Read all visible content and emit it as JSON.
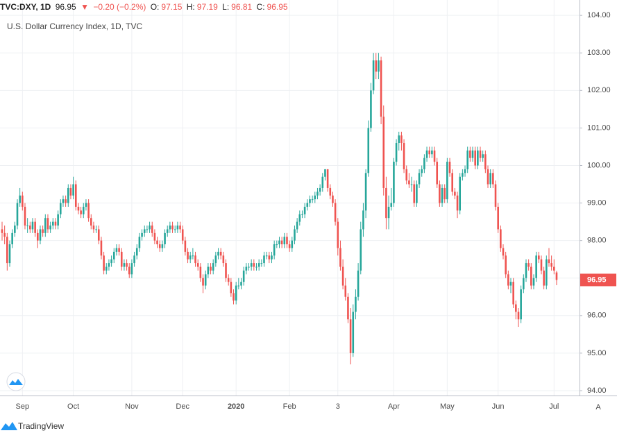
{
  "header": {
    "symbol": "TVC:DXY, 1D",
    "last": "96.95",
    "arrow": "▼",
    "change": "−0.20 (−0.2%)",
    "ohlc": [
      [
        "O:",
        "97.15"
      ],
      [
        "H:",
        "97.19"
      ],
      [
        "L:",
        "96.81"
      ],
      [
        "C:",
        "96.95"
      ]
    ]
  },
  "footer": {
    "logo": "TradingView",
    "scale_button": "A"
  },
  "chart_data": {
    "type": "candlestick",
    "title": "U.S. Dollar Currency Index, 1D, TVC",
    "up_color": "#26a69a",
    "down_color": "#ef5350",
    "grid": true,
    "ylim": [
      93.87,
      104.41
    ],
    "yticks": [
      {
        "value": 94,
        "label": "94.00"
      },
      {
        "value": 95,
        "label": "95.00"
      },
      {
        "value": 96,
        "label": "96.00"
      },
      {
        "value": 97,
        "label": "97.00"
      },
      {
        "value": 98,
        "label": "98.00"
      },
      {
        "value": 99,
        "label": "99.00"
      },
      {
        "value": 100,
        "label": "100.00"
      },
      {
        "value": 101,
        "label": "101.00"
      },
      {
        "value": 102,
        "label": "102.00"
      },
      {
        "value": 103,
        "label": "103.00"
      },
      {
        "value": 104,
        "label": "104.00"
      }
    ],
    "last_price": {
      "value": 96.95,
      "label": "96.95"
    },
    "categories": [
      null,
      null,
      null,
      null,
      null,
      null,
      null,
      null,
      "Sep",
      null,
      null,
      null,
      null,
      null,
      null,
      null,
      null,
      null,
      null,
      null,
      null,
      null,
      null,
      null,
      null,
      null,
      null,
      null,
      "Oct",
      null,
      null,
      null,
      null,
      null,
      null,
      null,
      null,
      null,
      null,
      null,
      null,
      null,
      null,
      null,
      null,
      null,
      null,
      null,
      null,
      null,
      null,
      "Nov",
      null,
      null,
      null,
      null,
      null,
      null,
      null,
      null,
      null,
      null,
      null,
      null,
      null,
      null,
      null,
      null,
      null,
      null,
      null,
      "Dec",
      null,
      null,
      null,
      null,
      null,
      null,
      null,
      null,
      null,
      null,
      null,
      null,
      null,
      null,
      null,
      null,
      null,
      null,
      null,
      null,
      "2020",
      null,
      null,
      null,
      null,
      null,
      null,
      null,
      null,
      null,
      null,
      null,
      null,
      null,
      null,
      null,
      null,
      null,
      null,
      null,
      null,
      "Feb",
      null,
      null,
      null,
      null,
      null,
      null,
      null,
      null,
      null,
      null,
      null,
      null,
      null,
      null,
      null,
      null,
      null,
      null,
      "3",
      null,
      null,
      null,
      null,
      null,
      null,
      null,
      null,
      null,
      null,
      null,
      null,
      null,
      null,
      null,
      null,
      null,
      null,
      null,
      null,
      null,
      "Apr",
      null,
      null,
      null,
      null,
      null,
      null,
      null,
      null,
      null,
      null,
      null,
      null,
      null,
      null,
      null,
      null,
      null,
      null,
      null,
      null,
      "May",
      null,
      null,
      null,
      null,
      null,
      null,
      null,
      null,
      null,
      null,
      null,
      null,
      null,
      null,
      null,
      null,
      null,
      null,
      null,
      "Jun",
      null,
      null,
      null,
      null,
      null,
      null,
      null,
      null,
      null,
      null,
      null,
      null,
      null,
      null,
      null,
      null,
      null,
      null,
      null,
      null,
      null,
      "Jul",
      null
    ],
    "ohlc": [
      [
        98.3,
        98.5,
        98.0,
        98.2
      ],
      [
        98.2,
        98.4,
        97.9,
        98.1
      ],
      [
        98.1,
        98.2,
        97.2,
        97.4
      ],
      [
        97.4,
        98.0,
        97.3,
        97.9
      ],
      [
        97.9,
        98.3,
        97.8,
        98.2
      ],
      [
        98.2,
        98.5,
        98.1,
        98.4
      ],
      [
        98.4,
        99.1,
        98.3,
        99.0
      ],
      [
        99.0,
        99.4,
        98.9,
        99.2
      ],
      [
        99.2,
        99.3,
        98.8,
        98.9
      ],
      [
        98.9,
        99.0,
        98.3,
        98.4
      ],
      [
        98.4,
        98.6,
        98.2,
        98.4
      ],
      [
        98.4,
        98.5,
        98.2,
        98.3
      ],
      [
        98.3,
        98.6,
        98.2,
        98.5
      ],
      [
        98.5,
        98.6,
        98.1,
        98.2
      ],
      [
        98.2,
        98.3,
        97.8,
        98.0
      ],
      [
        98.0,
        98.4,
        97.9,
        98.3
      ],
      [
        98.3,
        98.4,
        98.1,
        98.2
      ],
      [
        98.2,
        98.7,
        98.1,
        98.6
      ],
      [
        98.6,
        98.7,
        98.2,
        98.3
      ],
      [
        98.3,
        98.5,
        98.2,
        98.4
      ],
      [
        98.4,
        98.6,
        98.3,
        98.5
      ],
      [
        98.5,
        98.6,
        98.3,
        98.4
      ],
      [
        98.4,
        98.8,
        98.3,
        98.7
      ],
      [
        98.7,
        99.1,
        98.6,
        99.0
      ],
      [
        99.0,
        99.2,
        98.9,
        99.1
      ],
      [
        99.1,
        99.2,
        98.9,
        99.0
      ],
      [
        99.0,
        99.5,
        98.9,
        99.4
      ],
      [
        99.4,
        99.5,
        99.1,
        99.2
      ],
      [
        99.2,
        99.7,
        99.1,
        99.5
      ],
      [
        99.5,
        99.6,
        98.8,
        98.9
      ],
      [
        98.9,
        99.0,
        98.7,
        98.8
      ],
      [
        98.8,
        98.9,
        98.6,
        98.7
      ],
      [
        98.7,
        99.0,
        98.6,
        98.9
      ],
      [
        98.9,
        99.1,
        98.8,
        99.0
      ],
      [
        99.0,
        99.1,
        98.5,
        98.6
      ],
      [
        98.6,
        98.7,
        98.3,
        98.4
      ],
      [
        98.4,
        98.5,
        98.2,
        98.3
      ],
      [
        98.3,
        98.4,
        98.2,
        98.3
      ],
      [
        98.3,
        98.4,
        97.9,
        98.0
      ],
      [
        98.0,
        98.1,
        97.5,
        97.6
      ],
      [
        97.6,
        97.7,
        97.1,
        97.2
      ],
      [
        97.2,
        97.4,
        97.1,
        97.3
      ],
      [
        97.3,
        97.5,
        97.2,
        97.4
      ],
      [
        97.4,
        97.6,
        97.3,
        97.5
      ],
      [
        97.5,
        97.8,
        97.4,
        97.7
      ],
      [
        97.7,
        97.9,
        97.6,
        97.8
      ],
      [
        97.8,
        97.9,
        97.6,
        97.7
      ],
      [
        97.7,
        97.8,
        97.2,
        97.3
      ],
      [
        97.3,
        97.5,
        97.2,
        97.4
      ],
      [
        97.4,
        97.5,
        97.2,
        97.3
      ],
      [
        97.3,
        97.4,
        97.0,
        97.1
      ],
      [
        97.1,
        97.5,
        97.0,
        97.4
      ],
      [
        97.4,
        97.7,
        97.3,
        97.6
      ],
      [
        97.6,
        97.9,
        97.5,
        97.8
      ],
      [
        97.8,
        98.2,
        97.7,
        98.1
      ],
      [
        98.1,
        98.3,
        98.0,
        98.2
      ],
      [
        98.2,
        98.4,
        98.1,
        98.3
      ],
      [
        98.3,
        98.4,
        98.2,
        98.3
      ],
      [
        98.3,
        98.5,
        98.2,
        98.4
      ],
      [
        98.4,
        98.5,
        98.1,
        98.2
      ],
      [
        98.2,
        98.3,
        97.9,
        98.0
      ],
      [
        98.0,
        98.1,
        97.8,
        97.9
      ],
      [
        97.9,
        98.0,
        97.7,
        97.8
      ],
      [
        97.8,
        98.0,
        97.7,
        97.9
      ],
      [
        97.9,
        98.3,
        97.8,
        98.2
      ],
      [
        98.2,
        98.4,
        98.1,
        98.3
      ],
      [
        98.3,
        98.5,
        98.2,
        98.4
      ],
      [
        98.4,
        98.5,
        98.2,
        98.3
      ],
      [
        98.3,
        98.4,
        98.2,
        98.3
      ],
      [
        98.3,
        98.5,
        98.2,
        98.4
      ],
      [
        98.4,
        98.5,
        98.2,
        98.3
      ],
      [
        98.3,
        98.4,
        97.9,
        98.0
      ],
      [
        98.0,
        98.1,
        97.6,
        97.7
      ],
      [
        97.7,
        97.8,
        97.4,
        97.5
      ],
      [
        97.5,
        97.7,
        97.4,
        97.6
      ],
      [
        97.6,
        97.8,
        97.5,
        97.6
      ],
      [
        97.6,
        97.7,
        97.3,
        97.4
      ],
      [
        97.4,
        97.5,
        97.2,
        97.3
      ],
      [
        97.3,
        97.4,
        96.9,
        97.0
      ],
      [
        97.0,
        97.1,
        96.6,
        96.8
      ],
      [
        96.8,
        97.2,
        96.7,
        97.1
      ],
      [
        97.1,
        97.4,
        97.0,
        97.3
      ],
      [
        97.3,
        97.4,
        97.1,
        97.2
      ],
      [
        97.2,
        97.5,
        97.1,
        97.4
      ],
      [
        97.4,
        97.7,
        97.3,
        97.6
      ],
      [
        97.6,
        97.8,
        97.5,
        97.7
      ],
      [
        97.7,
        97.8,
        97.5,
        97.6
      ],
      [
        97.6,
        97.7,
        97.3,
        97.4
      ],
      [
        97.4,
        97.5,
        96.9,
        97.0
      ],
      [
        97.0,
        97.1,
        96.8,
        96.9
      ],
      [
        96.9,
        97.0,
        96.5,
        96.6
      ],
      [
        96.6,
        96.7,
        96.3,
        96.4
      ],
      [
        96.4,
        96.9,
        96.3,
        96.8
      ],
      [
        96.8,
        97.0,
        96.7,
        96.8
      ],
      [
        96.8,
        97.0,
        96.7,
        96.9
      ],
      [
        96.9,
        97.3,
        96.8,
        97.2
      ],
      [
        97.2,
        97.4,
        97.1,
        97.3
      ],
      [
        97.3,
        97.4,
        97.2,
        97.3
      ],
      [
        97.3,
        97.5,
        97.2,
        97.4
      ],
      [
        97.4,
        97.5,
        97.2,
        97.3
      ],
      [
        97.3,
        97.4,
        97.2,
        97.3
      ],
      [
        97.3,
        97.5,
        97.2,
        97.4
      ],
      [
        97.4,
        97.5,
        97.3,
        97.4
      ],
      [
        97.4,
        97.7,
        97.3,
        97.6
      ],
      [
        97.6,
        97.7,
        97.5,
        97.6
      ],
      [
        97.6,
        97.7,
        97.4,
        97.5
      ],
      [
        97.5,
        97.7,
        97.4,
        97.6
      ],
      [
        97.6,
        98.0,
        97.5,
        97.9
      ],
      [
        97.9,
        98.0,
        97.8,
        97.9
      ],
      [
        97.9,
        98.1,
        97.8,
        98.0
      ],
      [
        98.0,
        98.1,
        97.8,
        97.9
      ],
      [
        97.9,
        98.2,
        97.8,
        98.1
      ],
      [
        98.1,
        98.2,
        97.8,
        97.9
      ],
      [
        97.9,
        98.0,
        97.7,
        97.8
      ],
      [
        97.8,
        98.1,
        97.7,
        98.0
      ],
      [
        98.0,
        98.4,
        97.9,
        98.3
      ],
      [
        98.3,
        98.6,
        98.2,
        98.5
      ],
      [
        98.5,
        98.8,
        98.4,
        98.7
      ],
      [
        98.7,
        98.8,
        98.6,
        98.7
      ],
      [
        98.7,
        99.0,
        98.6,
        98.9
      ],
      [
        98.9,
        99.1,
        98.8,
        99.0
      ],
      [
        99.0,
        99.2,
        98.9,
        99.1
      ],
      [
        99.1,
        99.2,
        99.0,
        99.1
      ],
      [
        99.1,
        99.3,
        99.0,
        99.2
      ],
      [
        99.2,
        99.4,
        99.1,
        99.3
      ],
      [
        99.3,
        99.5,
        99.2,
        99.4
      ],
      [
        99.4,
        99.8,
        99.3,
        99.7
      ],
      [
        99.7,
        99.9,
        99.6,
        99.9
      ],
      [
        99.9,
        99.9,
        99.3,
        99.4
      ],
      [
        99.4,
        99.5,
        99.1,
        99.2
      ],
      [
        99.2,
        99.3,
        98.9,
        99.0
      ],
      [
        99.0,
        99.1,
        98.4,
        98.5
      ],
      [
        98.5,
        98.6,
        97.6,
        97.8
      ],
      [
        97.8,
        98.0,
        97.2,
        97.3
      ],
      [
        97.3,
        97.5,
        96.7,
        96.8
      ],
      [
        96.8,
        97.0,
        96.4,
        96.5
      ],
      [
        96.5,
        96.6,
        95.8,
        95.9
      ],
      [
        95.9,
        96.2,
        94.7,
        95.0
      ],
      [
        95.0,
        96.3,
        94.9,
        96.1
      ],
      [
        96.1,
        96.7,
        95.9,
        96.5
      ],
      [
        96.5,
        97.4,
        96.4,
        97.2
      ],
      [
        97.2,
        98.5,
        97.1,
        98.3
      ],
      [
        98.3,
        99.0,
        98.1,
        98.8
      ],
      [
        98.8,
        99.9,
        98.6,
        99.8
      ],
      [
        99.8,
        101.2,
        99.7,
        101.0
      ],
      [
        101.0,
        102.2,
        100.9,
        102.0
      ],
      [
        102.0,
        103.0,
        101.9,
        102.8
      ],
      [
        102.8,
        103.0,
        102.3,
        102.5
      ],
      [
        102.5,
        103.0,
        102.3,
        102.8
      ],
      [
        102.8,
        102.9,
        101.1,
        101.3
      ],
      [
        101.3,
        101.6,
        99.2,
        99.4
      ],
      [
        99.4,
        99.7,
        98.3,
        98.6
      ],
      [
        98.6,
        99.2,
        98.3,
        98.9
      ],
      [
        98.9,
        99.4,
        98.8,
        99.0
      ],
      [
        99.0,
        100.2,
        98.9,
        100.1
      ],
      [
        100.1,
        100.7,
        100.0,
        100.6
      ],
      [
        100.6,
        100.9,
        100.4,
        100.8
      ],
      [
        100.8,
        100.9,
        100.4,
        100.6
      ],
      [
        100.6,
        100.7,
        99.8,
        99.9
      ],
      [
        99.9,
        100.0,
        99.5,
        99.6
      ],
      [
        99.6,
        99.8,
        99.4,
        99.5
      ],
      [
        99.5,
        99.7,
        99.3,
        99.5
      ],
      [
        99.5,
        99.6,
        98.9,
        99.0
      ],
      [
        99.0,
        99.6,
        98.9,
        99.5
      ],
      [
        99.5,
        99.9,
        99.4,
        99.8
      ],
      [
        99.8,
        100.0,
        99.7,
        99.9
      ],
      [
        99.9,
        100.3,
        99.8,
        100.2
      ],
      [
        100.2,
        100.5,
        100.1,
        100.4
      ],
      [
        100.4,
        100.5,
        100.2,
        100.3
      ],
      [
        100.3,
        100.5,
        100.2,
        100.4
      ],
      [
        100.4,
        100.5,
        100.0,
        100.1
      ],
      [
        100.1,
        100.2,
        99.4,
        99.5
      ],
      [
        99.5,
        99.6,
        98.9,
        99.0
      ],
      [
        99.0,
        99.5,
        98.9,
        99.4
      ],
      [
        99.4,
        99.5,
        99.0,
        99.1
      ],
      [
        99.1,
        100.2,
        99.0,
        100.1
      ],
      [
        100.1,
        100.2,
        99.7,
        99.8
      ],
      [
        99.8,
        99.9,
        99.2,
        99.3
      ],
      [
        99.3,
        99.4,
        99.1,
        99.2
      ],
      [
        99.2,
        99.3,
        98.6,
        98.8
      ],
      [
        98.8,
        99.8,
        98.7,
        99.7
      ],
      [
        99.7,
        99.9,
        99.6,
        99.8
      ],
      [
        99.8,
        100.0,
        99.7,
        99.9
      ],
      [
        99.9,
        100.5,
        99.8,
        100.4
      ],
      [
        100.4,
        100.5,
        100.1,
        100.2
      ],
      [
        100.2,
        100.5,
        100.1,
        100.4
      ],
      [
        100.4,
        100.5,
        99.9,
        100.0
      ],
      [
        100.0,
        100.5,
        99.9,
        100.4
      ],
      [
        100.4,
        100.5,
        100.1,
        100.2
      ],
      [
        100.2,
        100.4,
        100.1,
        100.3
      ],
      [
        100.3,
        100.4,
        99.8,
        99.9
      ],
      [
        99.9,
        100.0,
        99.4,
        99.5
      ],
      [
        99.5,
        99.9,
        99.4,
        99.8
      ],
      [
        99.8,
        99.9,
        99.4,
        99.5
      ],
      [
        99.5,
        99.6,
        98.8,
        98.9
      ],
      [
        98.9,
        99.0,
        98.2,
        98.3
      ],
      [
        98.3,
        98.4,
        97.7,
        97.8
      ],
      [
        97.8,
        97.9,
        97.5,
        97.6
      ],
      [
        97.6,
        97.7,
        97.0,
        97.1
      ],
      [
        97.1,
        97.2,
        96.7,
        96.8
      ],
      [
        96.8,
        97.0,
        96.6,
        96.9
      ],
      [
        96.9,
        97.0,
        96.2,
        96.3
      ],
      [
        96.3,
        96.4,
        95.9,
        96.1
      ],
      [
        96.1,
        96.2,
        95.7,
        95.9
      ],
      [
        95.9,
        96.8,
        95.8,
        96.7
      ],
      [
        96.7,
        97.1,
        96.6,
        97.0
      ],
      [
        97.0,
        97.5,
        96.9,
        97.4
      ],
      [
        97.4,
        97.5,
        97.2,
        97.3
      ],
      [
        97.3,
        97.4,
        96.7,
        96.8
      ],
      [
        96.8,
        97.1,
        96.7,
        97.0
      ],
      [
        97.0,
        97.7,
        96.9,
        97.6
      ],
      [
        97.6,
        97.7,
        97.4,
        97.5
      ],
      [
        97.5,
        97.6,
        97.1,
        97.2
      ],
      [
        97.2,
        97.3,
        96.7,
        96.8
      ],
      [
        96.8,
        97.6,
        96.7,
        97.5
      ],
      [
        97.5,
        97.8,
        97.3,
        97.4
      ],
      [
        97.4,
        97.6,
        97.2,
        97.3
      ],
      [
        97.3,
        97.5,
        97.1,
        97.2
      ],
      [
        97.15,
        97.19,
        96.81,
        96.95
      ]
    ]
  }
}
